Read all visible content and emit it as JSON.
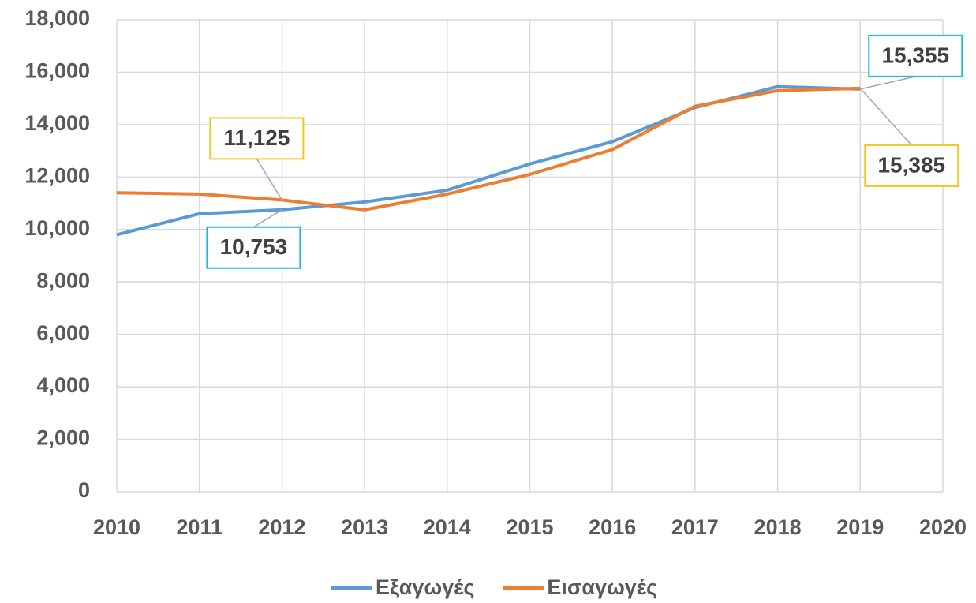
{
  "chart_data": {
    "type": "line",
    "x": [
      2010,
      2011,
      2012,
      2013,
      2014,
      2015,
      2016,
      2017,
      2018,
      2019
    ],
    "series": [
      {
        "name": "Εξαγωγές",
        "color": "#5b9bd5",
        "label_border": "#1fb5e0",
        "values": [
          9800,
          10600,
          10753,
          11050,
          11500,
          12500,
          13350,
          14650,
          15450,
          15355
        ],
        "value_labels": [
          null,
          null,
          "10,753",
          null,
          null,
          null,
          null,
          null,
          null,
          "15,355"
        ]
      },
      {
        "name": "Εισαγωγές",
        "color": "#ed7d31",
        "label_border": "#f5c518",
        "values": [
          11400,
          11350,
          11125,
          10750,
          11350,
          12100,
          13050,
          14700,
          15300,
          15385
        ],
        "value_labels": [
          null,
          null,
          "11,125",
          null,
          null,
          null,
          null,
          null,
          null,
          "15,385"
        ]
      }
    ],
    "xlim": [
      2010,
      2020
    ],
    "xticks": [
      2010,
      2011,
      2012,
      2013,
      2014,
      2015,
      2016,
      2017,
      2018,
      2019,
      2020
    ],
    "ylim": [
      0,
      18000
    ],
    "yticks": [
      0,
      {
        "value": 2000,
        "label": "2,000"
      },
      {
        "value": 4000,
        "label": "4,000"
      },
      {
        "value": 6000,
        "label": "6,000"
      },
      {
        "value": 8000,
        "label": "8,000"
      },
      {
        "value": 10000,
        "label": "10,000"
      },
      {
        "value": 12000,
        "label": "12,000"
      },
      {
        "value": 14000,
        "label": "14,000"
      },
      {
        "value": 16000,
        "label": "16,000"
      },
      {
        "value": 18000,
        "label": "18,000"
      }
    ],
    "grid": true,
    "legend": "bottom"
  }
}
